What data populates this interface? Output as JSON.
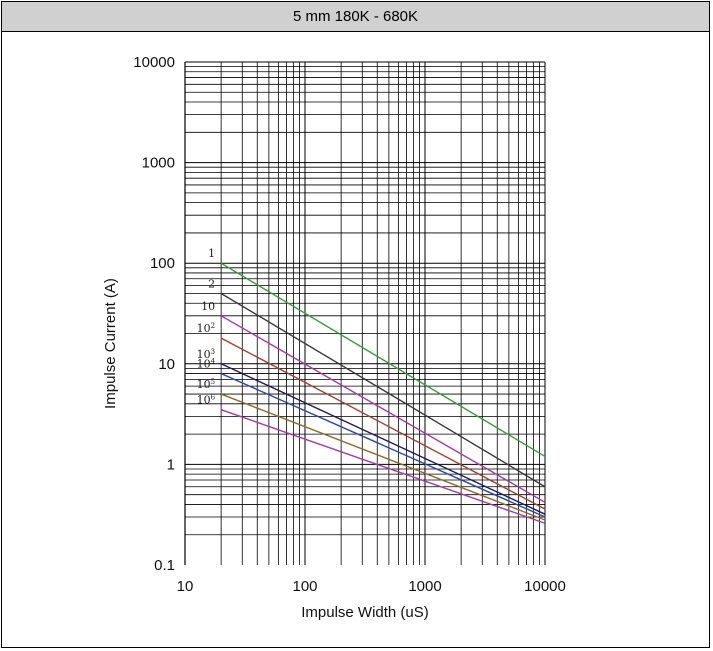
{
  "header": {
    "title": "5 mm 180K - 680K"
  },
  "chart_data": {
    "type": "line",
    "title": "5 mm 180K - 680K",
    "xlabel": "Impulse Width (uS)",
    "ylabel": "Impulse Current (A)",
    "xscale": "log",
    "yscale": "log",
    "xlim": [
      10,
      10000
    ],
    "ylim": [
      0.1,
      10000
    ],
    "x_ticks": [
      "10",
      "100",
      "1000",
      "10000"
    ],
    "y_ticks": [
      "0.1",
      "1",
      "10",
      "100",
      "1000",
      "10000"
    ],
    "grid": true,
    "series": [
      {
        "name": "1",
        "base": "1",
        "exp": "",
        "color": "#3a9a3a",
        "points": [
          [
            20,
            100
          ],
          [
            10000,
            1.2
          ]
        ]
      },
      {
        "name": "2",
        "base": "2",
        "exp": "",
        "color": "#3a3a3a",
        "points": [
          [
            20,
            50
          ],
          [
            10000,
            0.6
          ]
        ]
      },
      {
        "name": "10",
        "base": "10",
        "exp": "",
        "color": "#a43aa4",
        "points": [
          [
            20,
            30
          ],
          [
            10000,
            0.42
          ]
        ]
      },
      {
        "name": "10^2",
        "base": "10",
        "exp": "2",
        "color": "#a04030",
        "points": [
          [
            20,
            18
          ],
          [
            10000,
            0.36
          ]
        ]
      },
      {
        "name": "10^3",
        "base": "10",
        "exp": "3",
        "color": "#1a1a5a",
        "points": [
          [
            20,
            10
          ],
          [
            10000,
            0.32
          ]
        ]
      },
      {
        "name": "10^4",
        "base": "10",
        "exp": "4",
        "color": "#2a4aa8",
        "points": [
          [
            20,
            8
          ],
          [
            10000,
            0.3
          ]
        ]
      },
      {
        "name": "10^5",
        "base": "10",
        "exp": "5",
        "color": "#8a6a2a",
        "points": [
          [
            20,
            5
          ],
          [
            10000,
            0.28
          ]
        ]
      },
      {
        "name": "10^6",
        "base": "10",
        "exp": "6",
        "color": "#a43aa4",
        "points": [
          [
            20,
            3.5
          ],
          [
            10000,
            0.26
          ]
        ]
      }
    ]
  }
}
